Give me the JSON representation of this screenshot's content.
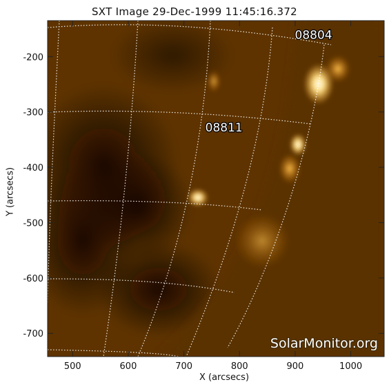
{
  "title": "SXT Image 29-Dec-1999 11:45:16.372",
  "x_axis": {
    "label": "X (arcsecs)",
    "ticks": [
      500,
      600,
      700,
      800,
      900,
      1000
    ],
    "range": [
      455,
      1060
    ]
  },
  "y_axis": {
    "label": "Y (arcsecs)",
    "ticks": [
      -200,
      -300,
      -400,
      -500,
      -600,
      -700
    ],
    "range": [
      -742,
      -135
    ]
  },
  "regions": [
    {
      "label": "08804",
      "x": 933,
      "y": -168
    },
    {
      "label": "08811",
      "x": 772,
      "y": -335
    }
  ],
  "watermark": "SolarMonitor.org",
  "colors": {
    "dark": "#1a0c00",
    "disk": "#6b3a00",
    "bright": "#ffae2a",
    "core": "#fff6dc",
    "grid": "#ffffff"
  }
}
